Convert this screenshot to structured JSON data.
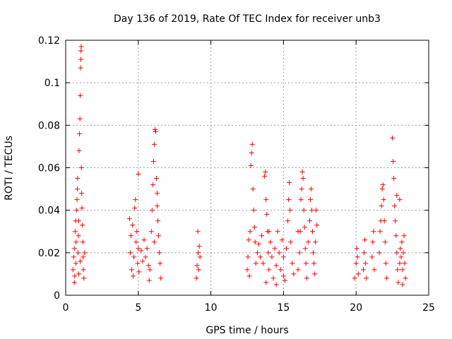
{
  "chart_data": {
    "type": "scatter",
    "title": "Day 136 of 2019, Rate Of TEC Index for receiver unb3",
    "xlabel": "GPS time / hours",
    "ylabel": "ROTI / TECUs",
    "xlim": [
      0,
      25
    ],
    "ylim": [
      0,
      0.12
    ],
    "xticks": [
      0,
      5,
      10,
      15,
      20,
      25
    ],
    "xtick_labels": [
      "0",
      "5",
      "10",
      "15",
      "20",
      "25"
    ],
    "yticks": [
      0,
      0.02,
      0.04,
      0.06,
      0.08,
      0.1,
      0.12
    ],
    "ytick_labels": [
      "0",
      "0.02",
      "0.04",
      "0.06",
      "0.08",
      "0.1",
      "0.12"
    ],
    "grid": true,
    "marker": "plus",
    "series": [
      {
        "name": "ROTI",
        "color": "#ff0000",
        "points": [
          [
            0.5,
            0.012
          ],
          [
            0.55,
            0.018
          ],
          [
            0.6,
            0.022
          ],
          [
            0.62,
            0.009
          ],
          [
            0.65,
            0.03
          ],
          [
            0.68,
            0.035
          ],
          [
            0.7,
            0.015
          ],
          [
            0.72,
            0.025
          ],
          [
            0.75,
            0.04
          ],
          [
            0.78,
            0.045
          ],
          [
            0.8,
            0.05
          ],
          [
            0.82,
            0.055
          ],
          [
            0.85,
            0.02
          ],
          [
            0.88,
            0.028
          ],
          [
            0.9,
            0.035
          ],
          [
            0.92,
            0.068
          ],
          [
            0.95,
            0.076
          ],
          [
            0.98,
            0.083
          ],
          [
            1.0,
            0.094
          ],
          [
            1.02,
            0.107
          ],
          [
            1.04,
            0.111
          ],
          [
            1.05,
            0.115
          ],
          [
            1.07,
            0.117
          ],
          [
            1.08,
            0.06
          ],
          [
            1.1,
            0.048
          ],
          [
            1.12,
            0.041
          ],
          [
            1.15,
            0.033
          ],
          [
            1.18,
            0.025
          ],
          [
            1.2,
            0.018
          ],
          [
            1.22,
            0.012
          ],
          [
            1.25,
            0.008
          ],
          [
            1.3,
            0.02
          ],
          [
            0.6,
            0.006
          ],
          [
            0.9,
            0.01
          ],
          [
            1.0,
            0.016
          ],
          [
            4.4,
            0.036
          ],
          [
            4.45,
            0.02
          ],
          [
            4.5,
            0.028
          ],
          [
            4.55,
            0.012
          ],
          [
            4.6,
            0.033
          ],
          [
            4.65,
            0.009
          ],
          [
            4.7,
            0.018
          ],
          [
            4.75,
            0.041
          ],
          [
            4.8,
            0.045
          ],
          [
            4.85,
            0.025
          ],
          [
            4.9,
            0.03
          ],
          [
            4.95,
            0.015
          ],
          [
            5.0,
            0.022
          ],
          [
            5.05,
            0.011
          ],
          [
            5.2,
            0.021
          ],
          [
            5.3,
            0.016
          ],
          [
            5.4,
            0.026
          ],
          [
            5.5,
            0.018
          ],
          [
            5.6,
            0.022
          ],
          [
            5.7,
            0.014
          ],
          [
            5.75,
            0.007
          ],
          [
            5.8,
            0.012
          ],
          [
            5.9,
            0.03
          ],
          [
            5.95,
            0.04
          ],
          [
            6.0,
            0.052
          ],
          [
            6.05,
            0.063
          ],
          [
            6.1,
            0.071
          ],
          [
            6.15,
            0.078
          ],
          [
            6.2,
            0.077
          ],
          [
            6.25,
            0.055
          ],
          [
            6.3,
            0.048
          ],
          [
            6.35,
            0.035
          ],
          [
            6.4,
            0.028
          ],
          [
            6.45,
            0.02
          ],
          [
            6.5,
            0.015
          ],
          [
            6.55,
            0.008
          ],
          [
            6.3,
            0.042
          ],
          [
            6.1,
            0.025
          ],
          [
            5.0,
            0.057
          ],
          [
            9.0,
            0.008
          ],
          [
            9.05,
            0.014
          ],
          [
            9.1,
            0.03
          ],
          [
            9.12,
            0.02
          ],
          [
            9.15,
            0.012
          ],
          [
            9.2,
            0.023
          ],
          [
            9.25,
            0.018
          ],
          [
            12.5,
            0.012
          ],
          [
            12.55,
            0.018
          ],
          [
            12.6,
            0.026
          ],
          [
            12.65,
            0.009
          ],
          [
            12.7,
            0.03
          ],
          [
            12.75,
            0.061
          ],
          [
            12.8,
            0.067
          ],
          [
            12.85,
            0.071
          ],
          [
            12.9,
            0.05
          ],
          [
            12.95,
            0.04
          ],
          [
            13.0,
            0.032
          ],
          [
            13.05,
            0.025
          ],
          [
            13.1,
            0.015
          ],
          [
            13.2,
            0.02
          ],
          [
            13.3,
            0.024
          ],
          [
            13.4,
            0.018
          ],
          [
            13.5,
            0.028
          ],
          [
            13.6,
            0.015
          ],
          [
            13.7,
            0.056
          ],
          [
            13.75,
            0.058
          ],
          [
            13.8,
            0.045
          ],
          [
            13.85,
            0.038
          ],
          [
            13.9,
            0.03
          ],
          [
            13.95,
            0.02
          ],
          [
            14.0,
            0.012
          ],
          [
            14.1,
            0.025
          ],
          [
            14.2,
            0.018
          ],
          [
            14.3,
            0.008
          ],
          [
            14.4,
            0.022
          ],
          [
            14.5,
            0.014
          ],
          [
            14.6,
            0.03
          ],
          [
            14.7,
            0.02
          ],
          [
            14.8,
            0.012
          ],
          [
            14.9,
            0.026
          ],
          [
            15.0,
            0.018
          ],
          [
            15.1,
            0.007
          ],
          [
            15.2,
            0.022
          ],
          [
            15.3,
            0.035
          ],
          [
            15.35,
            0.045
          ],
          [
            15.4,
            0.053
          ],
          [
            15.45,
            0.04
          ],
          [
            15.5,
            0.025
          ],
          [
            15.6,
            0.015
          ],
          [
            15.7,
            0.01
          ],
          [
            16.0,
            0.012
          ],
          [
            16.1,
            0.02
          ],
          [
            16.15,
            0.03
          ],
          [
            16.2,
            0.045
          ],
          [
            16.25,
            0.05
          ],
          [
            16.3,
            0.058
          ],
          [
            16.35,
            0.055
          ],
          [
            16.4,
            0.04
          ],
          [
            16.45,
            0.032
          ],
          [
            16.5,
            0.022
          ],
          [
            16.55,
            0.015
          ],
          [
            16.6,
            0.008
          ],
          [
            16.7,
            0.025
          ],
          [
            16.8,
            0.035
          ],
          [
            16.85,
            0.045
          ],
          [
            16.9,
            0.05
          ],
          [
            16.95,
            0.04
          ],
          [
            17.0,
            0.03
          ],
          [
            17.05,
            0.02
          ],
          [
            17.1,
            0.015
          ],
          [
            17.15,
            0.01
          ],
          [
            17.2,
            0.025
          ],
          [
            17.25,
            0.04
          ],
          [
            17.3,
            0.033
          ],
          [
            13.8,
            0.006
          ],
          [
            14.5,
            0.005
          ],
          [
            15.0,
            0.009
          ],
          [
            16.0,
            0.03
          ],
          [
            14.0,
            0.03
          ],
          [
            19.9,
            0.008
          ],
          [
            20.0,
            0.015
          ],
          [
            20.05,
            0.022
          ],
          [
            20.1,
            0.018
          ],
          [
            20.15,
            0.01
          ],
          [
            20.5,
            0.012
          ],
          [
            20.55,
            0.02
          ],
          [
            20.6,
            0.026
          ],
          [
            20.65,
            0.015
          ],
          [
            20.7,
            0.008
          ],
          [
            21.1,
            0.018
          ],
          [
            21.15,
            0.025
          ],
          [
            21.2,
            0.03
          ],
          [
            21.25,
            0.012
          ],
          [
            21.6,
            0.02
          ],
          [
            21.65,
            0.03
          ],
          [
            21.7,
            0.035
          ],
          [
            21.75,
            0.042
          ],
          [
            21.8,
            0.05
          ],
          [
            21.85,
            0.052
          ],
          [
            21.9,
            0.045
          ],
          [
            21.95,
            0.035
          ],
          [
            22.0,
            0.025
          ],
          [
            22.05,
            0.015
          ],
          [
            22.1,
            0.008
          ],
          [
            22.5,
            0.074
          ],
          [
            22.55,
            0.063
          ],
          [
            22.6,
            0.055
          ],
          [
            22.65,
            0.042
          ],
          [
            22.7,
            0.035
          ],
          [
            22.75,
            0.028
          ],
          [
            22.8,
            0.02
          ],
          [
            22.85,
            0.012
          ],
          [
            22.9,
            0.006
          ],
          [
            23.0,
            0.015
          ],
          [
            23.05,
            0.022
          ],
          [
            23.1,
            0.018
          ],
          [
            23.15,
            0.025
          ],
          [
            23.2,
            0.012
          ],
          [
            23.25,
            0.02
          ],
          [
            23.3,
            0.028
          ],
          [
            23.35,
            0.015
          ],
          [
            23.4,
            0.008
          ],
          [
            23.0,
            0.045
          ],
          [
            22.8,
            0.047
          ],
          [
            23.2,
            0.005
          ]
        ]
      }
    ]
  }
}
